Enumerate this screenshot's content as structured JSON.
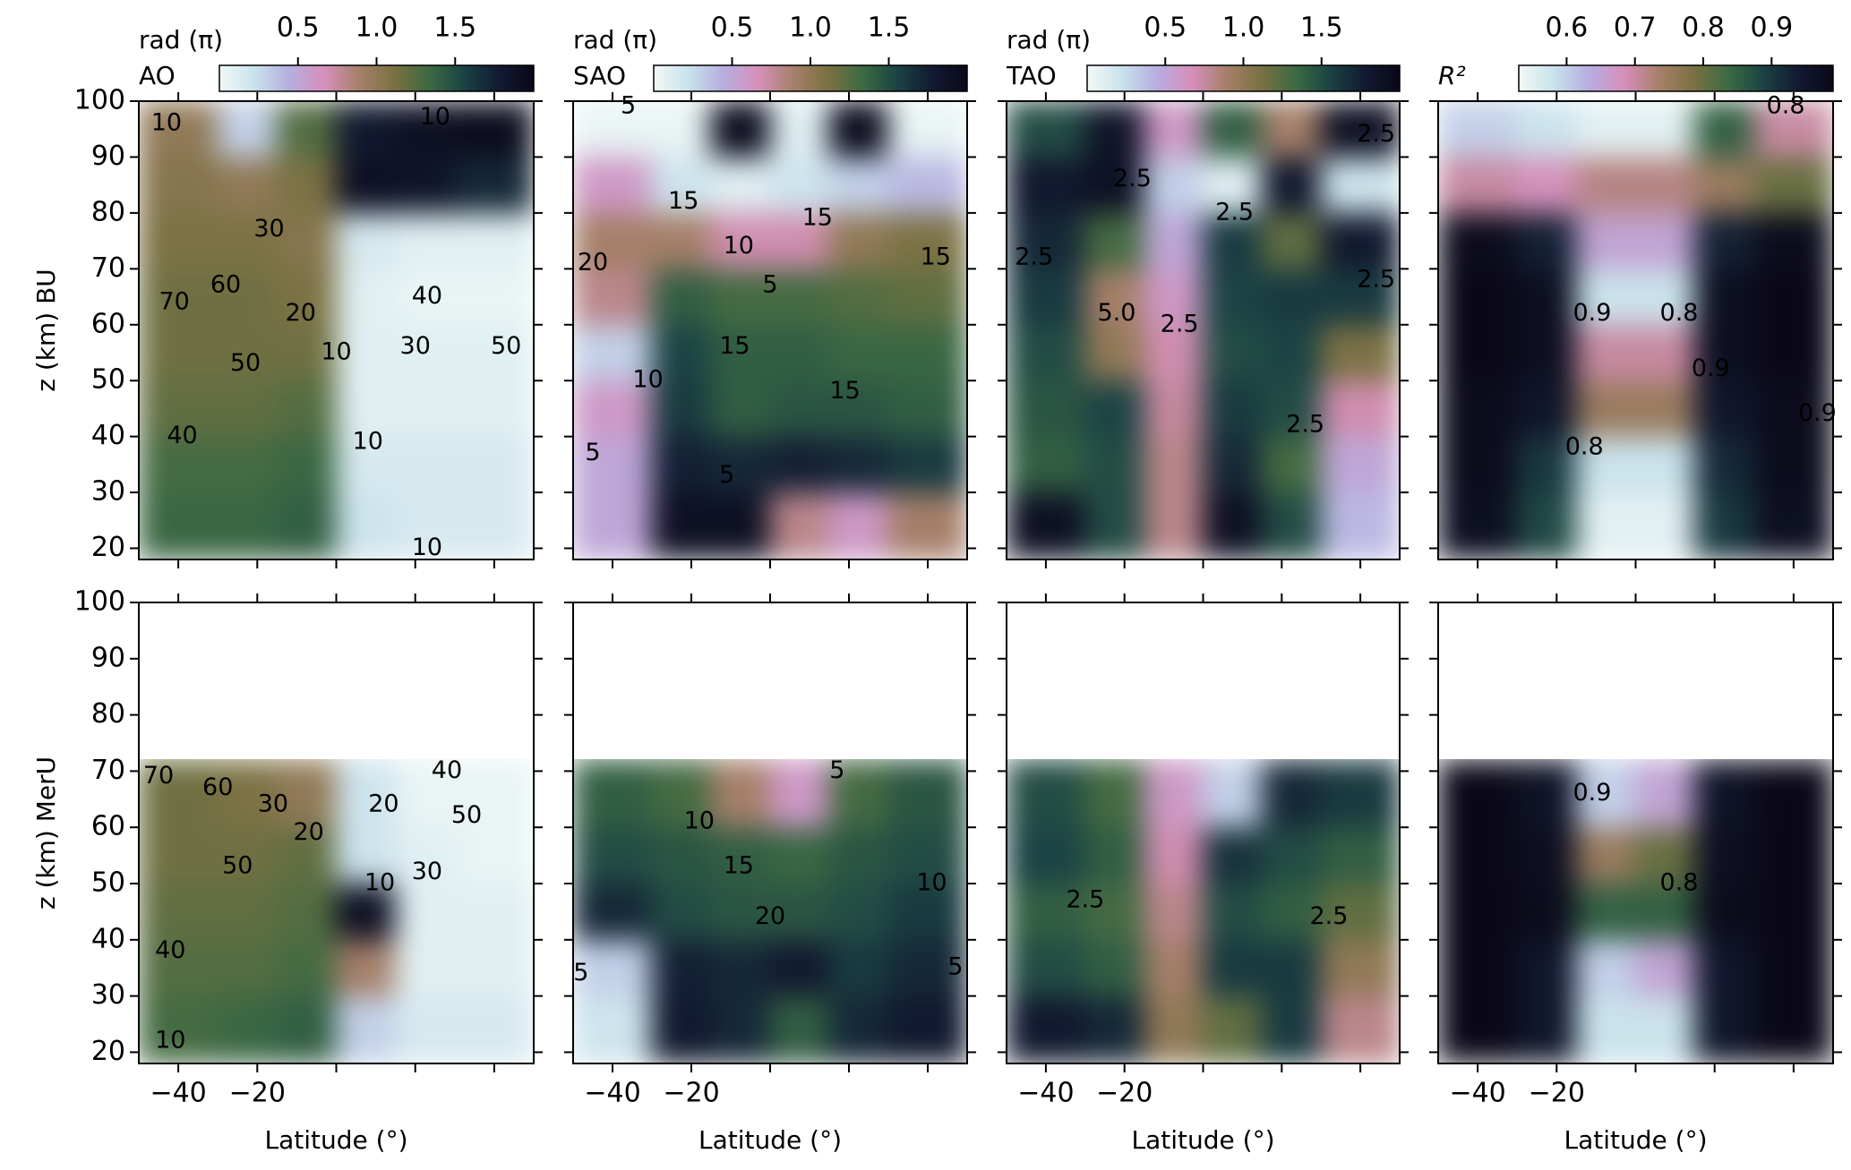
{
  "chart_data": [
    {
      "type": "heatmap",
      "colorbar": {
        "label": "rad (π)",
        "name": "AO",
        "ticks": [
          0.5,
          {
            "value": 1,
            "label": "1.0"
          },
          1.5
        ]
      },
      "ylabel": "z (km) BU",
      "clim": [
        0,
        2
      ],
      "colormap": [
        "#f2f9f6",
        "#c9e2ec",
        "#b6aee0",
        "#d78fbb",
        "#a7806b",
        "#7a7142",
        "#3c6a42",
        "#1b4244",
        "#121a32",
        "#0a0818"
      ],
      "xlim": [
        -50,
        50
      ],
      "ylim": [
        18,
        100
      ],
      "xticks": [
        -40,
        -20,
        0,
        20,
        40
      ],
      "yticks": [
        20,
        30,
        40,
        50,
        60,
        70,
        80,
        90,
        100
      ],
      "xbins": [
        -50,
        -30,
        -15,
        0,
        15,
        30,
        50
      ],
      "ybins": [
        18,
        30,
        40,
        50,
        60,
        70,
        80,
        90,
        100
      ],
      "values": [
        [
          1.35,
          1.35,
          1.4,
          0.2,
          0.15,
          0.15
        ],
        [
          1.3,
          1.3,
          1.35,
          0.15,
          0.15,
          0.15
        ],
        [
          1.2,
          1.2,
          1.25,
          0.1,
          0.1,
          0.1
        ],
        [
          1.15,
          1.15,
          1.15,
          0.1,
          0.1,
          0.1
        ],
        [
          1.15,
          1.15,
          1.1,
          0.1,
          0.05,
          0.05
        ],
        [
          1.1,
          1.1,
          1.05,
          0.15,
          0.1,
          0.1
        ],
        [
          1.05,
          1.0,
          1.1,
          1.9,
          1.85,
          1.7
        ],
        [
          1.0,
          0.3,
          1.25,
          1.8,
          1.9,
          1.95
        ]
      ],
      "contour_labels": [
        {
          "level": 10,
          "x": -43,
          "y": 96
        },
        {
          "level": 10,
          "x": 25,
          "y": 97
        },
        {
          "level": 30,
          "x": -17,
          "y": 77
        },
        {
          "level": 60,
          "x": -28,
          "y": 67
        },
        {
          "level": 70,
          "x": -41,
          "y": 64
        },
        {
          "level": 20,
          "x": -9,
          "y": 62
        },
        {
          "level": 10,
          "x": 0,
          "y": 55
        },
        {
          "level": 50,
          "x": -23,
          "y": 53
        },
        {
          "level": 40,
          "x": -39,
          "y": 40
        },
        {
          "level": 40,
          "x": 23,
          "y": 65
        },
        {
          "level": 30,
          "x": 20,
          "y": 56
        },
        {
          "level": 50,
          "x": 43,
          "y": 56
        },
        {
          "level": 10,
          "x": 8,
          "y": 39
        },
        {
          "level": 10,
          "x": 23,
          "y": 20
        }
      ]
    },
    {
      "type": "heatmap",
      "colorbar": {
        "label": "rad (π)",
        "name": "SAO",
        "ticks": [
          0.5,
          {
            "value": 1,
            "label": "1.0"
          },
          1.5
        ]
      },
      "clim": [
        0,
        2
      ],
      "colormap": [
        "#f2f9f6",
        "#c9e2ec",
        "#b6aee0",
        "#d78fbb",
        "#a7806b",
        "#7a7142",
        "#3c6a42",
        "#1b4244",
        "#121a32",
        "#0a0818"
      ],
      "xlim": [
        -50,
        50
      ],
      "ylim": [
        18,
        100
      ],
      "xticks": [
        -40,
        -20,
        0,
        20,
        40
      ],
      "yticks": [
        20,
        30,
        40,
        50,
        60,
        70,
        80,
        90,
        100
      ],
      "xbins": [
        -50,
        -30,
        -15,
        0,
        15,
        30,
        50
      ],
      "ybins": [
        18,
        30,
        40,
        50,
        60,
        70,
        80,
        90,
        100
      ],
      "values": [
        [
          0.5,
          1.9,
          1.9,
          0.8,
          0.6,
          0.9
        ],
        [
          0.5,
          1.75,
          1.7,
          1.75,
          1.7,
          1.6
        ],
        [
          0.6,
          1.6,
          1.4,
          1.45,
          1.45,
          1.4
        ],
        [
          0.3,
          1.55,
          1.4,
          1.4,
          1.35,
          1.35
        ],
        [
          0.8,
          1.4,
          1.3,
          1.3,
          1.25,
          1.2
        ],
        [
          0.9,
          0.9,
          0.7,
          0.7,
          1.0,
          1.1
        ],
        [
          0.6,
          0.2,
          0.1,
          0.2,
          0.3,
          0.4
        ],
        [
          0.05,
          0.05,
          1.95,
          0.1,
          1.95,
          0.05
        ]
      ],
      "contour_labels": [
        {
          "level": 5,
          "x": -36,
          "y": 99
        },
        {
          "level": 15,
          "x": -22,
          "y": 82
        },
        {
          "level": 15,
          "x": 12,
          "y": 79
        },
        {
          "level": 10,
          "x": -8,
          "y": 74
        },
        {
          "level": 5,
          "x": 0,
          "y": 67
        },
        {
          "level": 15,
          "x": 42,
          "y": 72
        },
        {
          "level": 15,
          "x": -9,
          "y": 56
        },
        {
          "level": 10,
          "x": -31,
          "y": 50
        },
        {
          "level": 15,
          "x": 19,
          "y": 48
        },
        {
          "level": 5,
          "x": -11,
          "y": 33
        },
        {
          "level": 5,
          "x": -45,
          "y": 37
        },
        {
          "level": 20,
          "x": -45,
          "y": 71
        }
      ]
    },
    {
      "type": "heatmap",
      "colorbar": {
        "label": "rad (π)",
        "name": "TAO",
        "ticks": [
          0.5,
          {
            "value": 1,
            "label": "1.0"
          },
          1.5
        ]
      },
      "clim": [
        0,
        2
      ],
      "colormap": [
        "#f2f9f6",
        "#c9e2ec",
        "#b6aee0",
        "#d78fbb",
        "#a7806b",
        "#7a7142",
        "#3c6a42",
        "#1b4244",
        "#121a32",
        "#0a0818"
      ],
      "xlim": [
        -50,
        50
      ],
      "ylim": [
        18,
        100
      ],
      "xticks": [
        -40,
        -20,
        0,
        20,
        40
      ],
      "yticks": [
        20,
        30,
        40,
        50,
        60,
        70,
        80,
        90,
        100
      ],
      "xbins": [
        -50,
        -30,
        -15,
        0,
        15,
        30,
        50
      ],
      "ybins": [
        18,
        30,
        40,
        50,
        60,
        70,
        80,
        90,
        100
      ],
      "values": [
        [
          1.9,
          1.5,
          0.8,
          1.9,
          1.5,
          0.4
        ],
        [
          1.4,
          1.5,
          0.8,
          1.7,
          1.3,
          0.5
        ],
        [
          1.45,
          1.55,
          0.75,
          1.6,
          1.5,
          0.7
        ],
        [
          1.5,
          1.0,
          0.7,
          1.5,
          1.55,
          1.1
        ],
        [
          1.6,
          0.9,
          0.6,
          1.55,
          1.6,
          1.6
        ],
        [
          1.7,
          1.3,
          0.5,
          1.6,
          1.2,
          1.8
        ],
        [
          1.8,
          1.9,
          0.3,
          0.1,
          1.8,
          0.2
        ],
        [
          1.5,
          1.85,
          0.6,
          1.4,
          0.9,
          1.9
        ]
      ],
      "contour_labels": [
        {
          "level": 2.5,
          "x": -18,
          "y": 86
        },
        {
          "level": 2.5,
          "x": 8,
          "y": 80
        },
        {
          "level": 2.5,
          "x": -43,
          "y": 72
        },
        {
          "level": 5,
          "label": "5.0",
          "x": -22,
          "y": 62
        },
        {
          "level": 2.5,
          "x": -6,
          "y": 60
        },
        {
          "level": 2.5,
          "x": 26,
          "y": 42
        },
        {
          "level": 2.5,
          "x": 44,
          "y": 68
        },
        {
          "level": 2.5,
          "x": 44,
          "y": 94
        }
      ]
    },
    {
      "type": "heatmap",
      "colorbar": {
        "name": "R²",
        "ticks": [
          0.6,
          0.7,
          0.8,
          0.9
        ]
      },
      "clim": [
        0.53,
        0.99
      ],
      "colormap": [
        "#f2f9f6",
        "#c9e2ec",
        "#b6aee0",
        "#d78fbb",
        "#a7806b",
        "#7a7142",
        "#3c6a42",
        "#1b4244",
        "#121a32",
        "#0a0818"
      ],
      "xlim": [
        -50,
        50
      ],
      "ylim": [
        18,
        100
      ],
      "xticks": [
        -40,
        -20,
        0,
        20,
        40
      ],
      "yticks": [
        20,
        30,
        40,
        50,
        60,
        70,
        80,
        90,
        100
      ],
      "xbins": [
        -50,
        -30,
        -15,
        0,
        15,
        30,
        50
      ],
      "ybins": [
        18,
        30,
        40,
        50,
        60,
        70,
        80,
        90,
        100
      ],
      "values": [
        [
          0.97,
          0.88,
          0.55,
          0.55,
          0.9,
          0.97
        ],
        [
          0.98,
          0.9,
          0.58,
          0.58,
          0.92,
          0.98
        ],
        [
          0.98,
          0.95,
          0.75,
          0.75,
          0.95,
          0.98
        ],
        [
          0.99,
          0.97,
          0.7,
          0.7,
          0.97,
          0.99
        ],
        [
          0.99,
          0.97,
          0.58,
          0.58,
          0.97,
          0.99
        ],
        [
          0.98,
          0.93,
          0.65,
          0.65,
          0.93,
          0.98
        ],
        [
          0.7,
          0.68,
          0.72,
          0.72,
          0.75,
          0.8
        ],
        [
          0.6,
          0.58,
          0.55,
          0.55,
          0.85,
          0.7
        ]
      ],
      "contour_labels": [
        {
          "level": 0.9,
          "x": -11,
          "y": 62
        },
        {
          "level": 0.8,
          "x": 11,
          "y": 62
        },
        {
          "level": 0.9,
          "x": 19,
          "y": 52
        },
        {
          "level": 0.8,
          "x": -13,
          "y": 38
        },
        {
          "level": 0.9,
          "x": 46,
          "y": 44
        },
        {
          "level": 0.8,
          "x": 38,
          "y": 99
        }
      ]
    },
    {
      "type": "heatmap",
      "ylabel": "z (km) MerU",
      "xlabel": "Latitude (°)",
      "clim": [
        0,
        2
      ],
      "colormap": [
        "#f2f9f6",
        "#c9e2ec",
        "#b6aee0",
        "#d78fbb",
        "#a7806b",
        "#7a7142",
        "#3c6a42",
        "#1b4244",
        "#121a32",
        "#0a0818"
      ],
      "xlim": [
        -50,
        50
      ],
      "ylim": [
        18,
        100
      ],
      "xticks": [
        {
          "value": -40,
          "label": "−40"
        },
        {
          "value": -20,
          "label": "−20"
        },
        0,
        20,
        40
      ],
      "yticks": [
        20,
        30,
        40,
        50,
        60,
        70,
        80,
        90,
        100
      ],
      "xbins": [
        -50,
        -30,
        -15,
        0,
        15,
        30,
        50
      ],
      "ybins": [
        18,
        30,
        40,
        50,
        60,
        72
      ],
      "values": [
        [
          1.3,
          1.35,
          1.4,
          0.3,
          0.15,
          0.15
        ],
        [
          1.25,
          1.25,
          1.3,
          0.9,
          0.1,
          0.1
        ],
        [
          1.2,
          1.2,
          1.25,
          1.9,
          0.1,
          0.1
        ],
        [
          1.15,
          1.15,
          1.2,
          0.2,
          0.1,
          0.05
        ],
        [
          1.15,
          1.1,
          1.0,
          0.2,
          0.05,
          0.05
        ]
      ],
      "contour_labels": [
        {
          "level": 70,
          "x": -45,
          "y": 69
        },
        {
          "level": 60,
          "x": -30,
          "y": 67
        },
        {
          "level": 30,
          "x": -16,
          "y": 64
        },
        {
          "level": 20,
          "x": -7,
          "y": 59
        },
        {
          "level": 50,
          "x": -25,
          "y": 53
        },
        {
          "level": 40,
          "x": -42,
          "y": 38
        },
        {
          "level": 10,
          "x": -42,
          "y": 22
        },
        {
          "level": 10,
          "x": 11,
          "y": 50
        },
        {
          "level": 20,
          "x": 12,
          "y": 64
        },
        {
          "level": 40,
          "x": 28,
          "y": 70
        },
        {
          "level": 50,
          "x": 33,
          "y": 62
        },
        {
          "level": 30,
          "x": 23,
          "y": 52
        }
      ]
    },
    {
      "type": "heatmap",
      "xlabel": "Latitude (°)",
      "clim": [
        0,
        2
      ],
      "colormap": [
        "#f2f9f6",
        "#c9e2ec",
        "#b6aee0",
        "#d78fbb",
        "#a7806b",
        "#7a7142",
        "#3c6a42",
        "#1b4244",
        "#121a32",
        "#0a0818"
      ],
      "xlim": [
        -50,
        50
      ],
      "ylim": [
        18,
        100
      ],
      "xticks": [
        {
          "value": -40,
          "label": "−40"
        },
        {
          "value": -20,
          "label": "−20"
        },
        0,
        20,
        40
      ],
      "yticks": [
        20,
        30,
        40,
        50,
        60,
        70,
        80,
        90,
        100
      ],
      "xbins": [
        -50,
        -30,
        -15,
        0,
        15,
        30,
        50
      ],
      "ybins": [
        18,
        30,
        40,
        50,
        60,
        72
      ],
      "values": [
        [
          0.2,
          1.8,
          1.7,
          1.4,
          1.7,
          1.8
        ],
        [
          0.3,
          1.75,
          1.7,
          1.8,
          1.6,
          1.7
        ],
        [
          1.7,
          1.5,
          1.45,
          1.45,
          1.5,
          1.6
        ],
        [
          1.5,
          1.45,
          1.4,
          1.35,
          1.45,
          1.5
        ],
        [
          1.4,
          1.3,
          0.9,
          0.6,
          1.3,
          1.45
        ]
      ],
      "contour_labels": [
        {
          "level": 5,
          "x": 17,
          "y": 70
        },
        {
          "level": 10,
          "x": -18,
          "y": 61
        },
        {
          "level": 15,
          "x": -8,
          "y": 53
        },
        {
          "level": 20,
          "x": 0,
          "y": 44
        },
        {
          "level": 10,
          "x": 41,
          "y": 50
        },
        {
          "level": 5,
          "x": 47,
          "y": 35
        },
        {
          "level": 5,
          "x": -48,
          "y": 34
        }
      ]
    },
    {
      "type": "heatmap",
      "xlabel": "Latitude (°)",
      "clim": [
        0,
        2
      ],
      "colormap": [
        "#f2f9f6",
        "#c9e2ec",
        "#b6aee0",
        "#d78fbb",
        "#a7806b",
        "#7a7142",
        "#3c6a42",
        "#1b4244",
        "#121a32",
        "#0a0818"
      ],
      "xlim": [
        -50,
        50
      ],
      "ylim": [
        18,
        100
      ],
      "xticks": [
        {
          "value": -40,
          "label": "−40"
        },
        {
          "value": -20,
          "label": "−20"
        },
        0,
        20,
        40
      ],
      "yticks": [
        20,
        30,
        40,
        50,
        60,
        70,
        80,
        90,
        100
      ],
      "xbins": [
        -50,
        -30,
        -15,
        0,
        15,
        30,
        50
      ],
      "ybins": [
        18,
        30,
        40,
        50,
        60,
        72
      ],
      "values": [
        [
          1.8,
          1.7,
          1.0,
          1.2,
          1.6,
          0.8
        ],
        [
          1.5,
          1.4,
          0.9,
          1.6,
          1.6,
          1.0
        ],
        [
          1.4,
          1.3,
          0.8,
          1.5,
          1.4,
          1.2
        ],
        [
          1.55,
          1.4,
          0.7,
          1.65,
          1.5,
          1.4
        ],
        [
          1.5,
          1.3,
          0.6,
          0.3,
          1.7,
          1.6
        ]
      ],
      "contour_labels": [
        {
          "level": 2.5,
          "x": -30,
          "y": 47
        },
        {
          "level": 2.5,
          "x": 32,
          "y": 44
        }
      ]
    },
    {
      "type": "heatmap",
      "xlabel": "Latitude (°)",
      "clim": [
        0.53,
        0.99
      ],
      "colormap": [
        "#f2f9f6",
        "#c9e2ec",
        "#b6aee0",
        "#d78fbb",
        "#a7806b",
        "#7a7142",
        "#3c6a42",
        "#1b4244",
        "#121a32",
        "#0a0818"
      ],
      "xlim": [
        -50,
        50
      ],
      "ylim": [
        18,
        100
      ],
      "xticks": [
        {
          "value": -40,
          "label": "−40"
        },
        {
          "value": -20,
          "label": "−20"
        },
        0,
        20,
        40
      ],
      "yticks": [
        20,
        30,
        40,
        50,
        60,
        70,
        80,
        90,
        100
      ],
      "xbins": [
        -50,
        -30,
        -15,
        0,
        15,
        30,
        50
      ],
      "ybins": [
        18,
        30,
        40,
        50,
        60,
        72
      ],
      "values": [
        [
          0.99,
          0.95,
          0.58,
          0.58,
          0.95,
          0.99
        ],
        [
          0.99,
          0.95,
          0.6,
          0.65,
          0.95,
          0.99
        ],
        [
          0.99,
          0.98,
          0.85,
          0.85,
          0.98,
          0.99
        ],
        [
          0.99,
          0.97,
          0.75,
          0.8,
          0.97,
          0.99
        ],
        [
          0.99,
          0.96,
          0.6,
          0.65,
          0.96,
          0.99
        ]
      ],
      "contour_labels": [
        {
          "level": 0.9,
          "x": -11,
          "y": 66
        },
        {
          "level": 0.8,
          "x": 11,
          "y": 50
        }
      ]
    }
  ]
}
